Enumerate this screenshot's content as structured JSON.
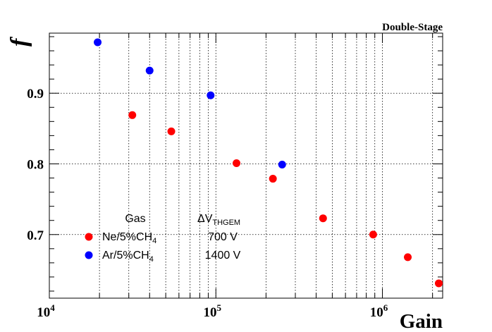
{
  "chart_data": {
    "type": "scatter",
    "title": "Double-Stage",
    "xlabel": "Gain",
    "ylabel": "f",
    "xscale": "log",
    "xlim": [
      10000,
      2300000
    ],
    "ylim": [
      0.61,
      0.985
    ],
    "grid": true,
    "x_tick_labels": [
      {
        "value": 10000,
        "base": "10",
        "exp": "4"
      },
      {
        "value": 100000,
        "base": "10",
        "exp": "5"
      },
      {
        "value": 1000000,
        "base": "10",
        "exp": "6"
      }
    ],
    "y_tick_labels": [
      {
        "value": 0.7,
        "label": "0.7"
      },
      {
        "value": 0.8,
        "label": "0.8"
      },
      {
        "value": 0.9,
        "label": "0.9"
      }
    ],
    "series": [
      {
        "name": "Ne/5%CH4",
        "name_main": "Ne/5%CH",
        "name_sub": "4",
        "voltage": "700 V",
        "color": "#ff0000",
        "points": [
          {
            "x": 31500,
            "y": 0.869
          },
          {
            "x": 54000,
            "y": 0.846
          },
          {
            "x": 133000,
            "y": 0.801
          },
          {
            "x": 220000,
            "y": 0.779
          },
          {
            "x": 440000,
            "y": 0.723
          },
          {
            "x": 880000,
            "y": 0.7
          },
          {
            "x": 1420000,
            "y": 0.668
          },
          {
            "x": 2180000,
            "y": 0.631
          }
        ]
      },
      {
        "name": "Ar/5%CH4",
        "name_main": "Ar/5%CH",
        "name_sub": "4",
        "voltage": "1400 V",
        "color": "#0000ff",
        "points": [
          {
            "x": 19500,
            "y": 0.972
          },
          {
            "x": 40000,
            "y": 0.932
          },
          {
            "x": 93000,
            "y": 0.897
          },
          {
            "x": 250000,
            "y": 0.799
          }
        ]
      }
    ],
    "legend": {
      "placement": "bottom-left",
      "header_gas": "Gas",
      "header_voltage_prefix": "ΔV",
      "header_voltage_sub": "THGEM"
    }
  }
}
